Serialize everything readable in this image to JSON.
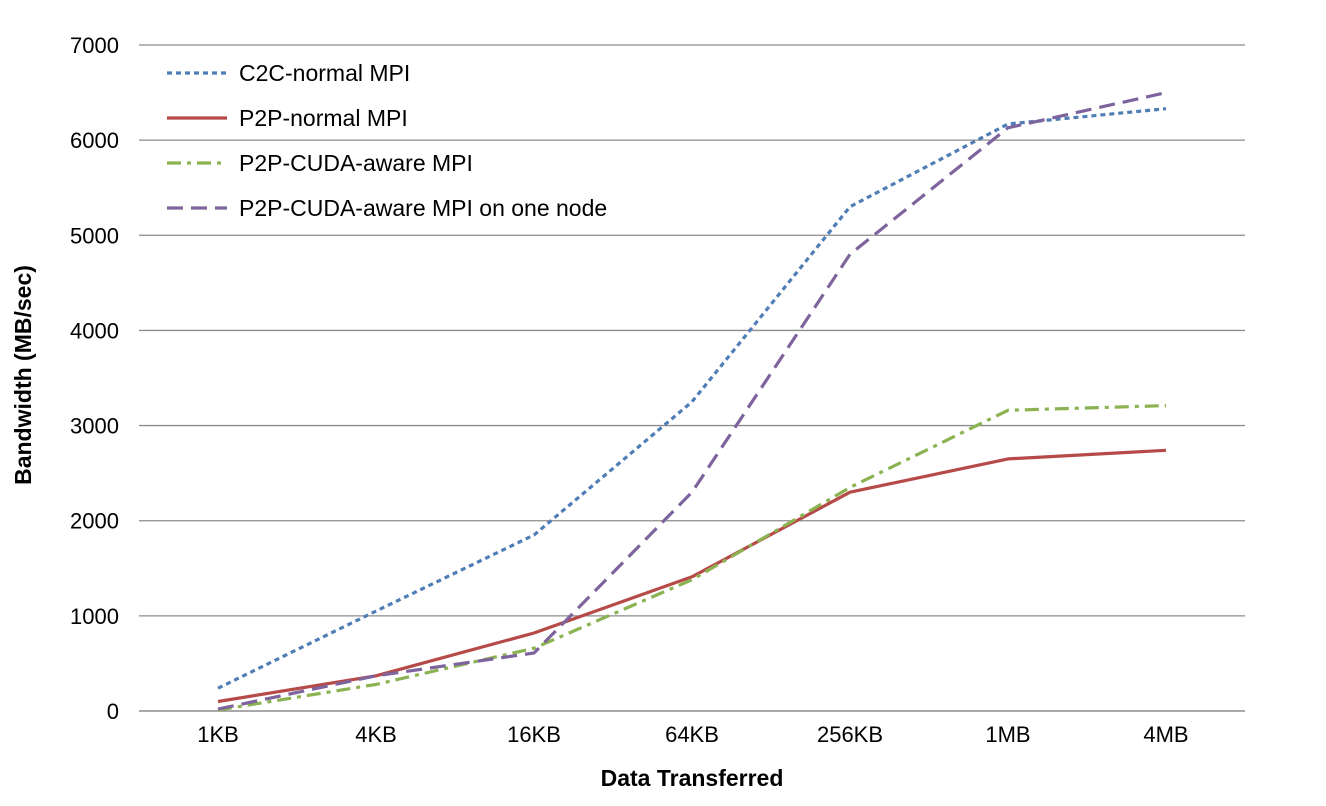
{
  "chart_data": {
    "type": "line",
    "title": "",
    "xlabel": "Data Transferred",
    "ylabel": "Bandwidth (MB/sec)",
    "categories": [
      "1KB",
      "4KB",
      "16KB",
      "64KB",
      "256KB",
      "1MB",
      "4MB"
    ],
    "ylim": [
      0,
      7000
    ],
    "yticks": [
      0,
      1000,
      2000,
      3000,
      4000,
      5000,
      6000,
      7000
    ],
    "grid": "horizontal",
    "legend_position": "top-left",
    "series": [
      {
        "name": "C2C-normal MPI",
        "color": "#4f7db5",
        "dash": "dotted",
        "values": [
          240,
          1050,
          1850,
          3250,
          5300,
          6170,
          6330
        ]
      },
      {
        "name": "P2P-normal MPI",
        "color": "#b64a48",
        "dash": "solid",
        "values": [
          100,
          370,
          820,
          1410,
          2300,
          2650,
          2740
        ]
      },
      {
        "name": "P2P-CUDA-aware MPI",
        "color": "#8cb352",
        "dash": "dashdot",
        "values": [
          10,
          280,
          660,
          1380,
          2350,
          3160,
          3210
        ]
      },
      {
        "name": "P2P-CUDA-aware MPI on one node",
        "color": "#7e649c",
        "dash": "dashed",
        "values": [
          20,
          370,
          610,
          2300,
          4800,
          6130,
          6500
        ]
      }
    ]
  }
}
